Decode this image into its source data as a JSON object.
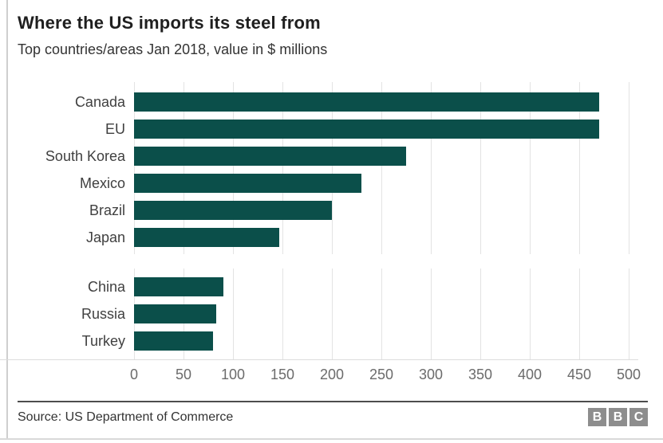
{
  "header": {
    "title": "Where the US imports its steel from",
    "subtitle": "Top countries/areas Jan 2018, value in $ millions"
  },
  "chart_data": {
    "type": "bar",
    "orientation": "horizontal",
    "title": "Where the US imports its steel from",
    "subtitle": "Top countries/areas Jan 2018, value in $ millions",
    "xlabel": "",
    "ylabel": "",
    "xlim": [
      0,
      500
    ],
    "x_ticks": [
      0,
      50,
      100,
      150,
      200,
      250,
      300,
      350,
      400,
      450,
      500
    ],
    "grid": true,
    "legend": false,
    "bar_color": "#0b4f4a",
    "gridline_color": "#e3e3e3",
    "groups": [
      {
        "name": "top-importers",
        "categories": [
          "Canada",
          "EU",
          "South Korea",
          "Mexico",
          "Brazil",
          "Japan"
        ],
        "values": [
          470,
          470,
          275,
          230,
          200,
          147
        ]
      },
      {
        "name": "lower-importers",
        "categories": [
          "China",
          "Russia",
          "Turkey"
        ],
        "values": [
          90,
          83,
          80
        ]
      }
    ]
  },
  "footer": {
    "source": "Source: US Department of Commerce",
    "logo_letters": [
      "B",
      "B",
      "C"
    ]
  }
}
